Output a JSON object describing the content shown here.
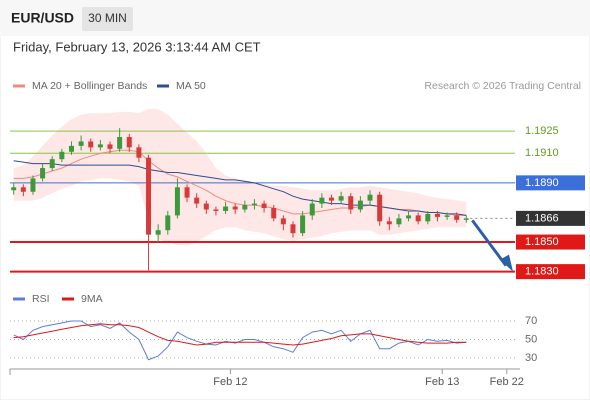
{
  "header": {
    "symbol": "EUR/USD",
    "timeframe": "30 MIN",
    "datetime": "Friday, February 13, 2026 3:13:44 AM CET"
  },
  "chart_data": [
    {
      "type": "candlestick",
      "credit": "Research © 2026 Trading Central",
      "ylim": [
        1.1823,
        1.1946
      ],
      "xlim": [
        -0.8,
        53.3
      ],
      "up_color": "#3c9a3c",
      "down_color": "#d83a3a",
      "open": [
        1.1885,
        1.1887,
        1.1884,
        1.1893,
        1.19,
        1.1906,
        1.1911,
        1.1915,
        1.1918,
        1.1914,
        1.1916,
        1.1913,
        1.1921,
        1.1914,
        1.1907,
        1.1855,
        1.1858,
        1.1868,
        1.1887,
        1.188,
        1.1876,
        1.1872,
        1.1871,
        1.1874,
        1.1872,
        1.1875,
        1.1876,
        1.1873,
        1.1866,
        1.1862,
        1.1856,
        1.1868,
        1.1876,
        1.188,
        1.1878,
        1.1881,
        1.1872,
        1.1878,
        1.1882,
        1.1864,
        1.1862,
        1.1866,
        1.1868,
        1.1864,
        1.1869,
        1.1867,
        1.1868,
        1.1865
      ],
      "high": [
        1.189,
        1.1889,
        1.1895,
        1.1903,
        1.1908,
        1.1913,
        1.1918,
        1.1922,
        1.192,
        1.1919,
        1.1918,
        1.1927,
        1.1923,
        1.1916,
        1.1909,
        1.1862,
        1.1871,
        1.1893,
        1.1889,
        1.1883,
        1.1878,
        1.1874,
        1.1877,
        1.1876,
        1.1878,
        1.1879,
        1.1878,
        1.1875,
        1.1868,
        1.1864,
        1.1871,
        1.1879,
        1.1883,
        1.1882,
        1.1884,
        1.1883,
        1.1881,
        1.1885,
        1.1884,
        1.1867,
        1.1869,
        1.1871,
        1.187,
        1.1871,
        1.1871,
        1.187,
        1.187,
        1.1868
      ],
      "low": [
        1.1882,
        1.1881,
        1.1882,
        1.1891,
        1.1898,
        1.1904,
        1.1909,
        1.1912,
        1.1911,
        1.1912,
        1.191,
        1.1911,
        1.1911,
        1.1904,
        1.1831,
        1.185,
        1.1855,
        1.1866,
        1.1877,
        1.1873,
        1.1869,
        1.1868,
        1.1869,
        1.1869,
        1.187,
        1.1872,
        1.187,
        1.1864,
        1.1858,
        1.1853,
        1.1854,
        1.1865,
        1.1873,
        1.1875,
        1.1876,
        1.1869,
        1.187,
        1.1875,
        1.1861,
        1.1858,
        1.186,
        1.1864,
        1.1862,
        1.1862,
        1.1864,
        1.1865,
        1.1863,
        1.1863
      ],
      "close": [
        1.1887,
        1.1884,
        1.1893,
        1.19,
        1.1906,
        1.1911,
        1.1915,
        1.1918,
        1.1914,
        1.1916,
        1.1913,
        1.1921,
        1.1914,
        1.1907,
        1.1855,
        1.1858,
        1.1868,
        1.1887,
        1.188,
        1.1876,
        1.1872,
        1.1871,
        1.1874,
        1.1872,
        1.1875,
        1.1876,
        1.1873,
        1.1866,
        1.1862,
        1.1856,
        1.1868,
        1.1876,
        1.188,
        1.1878,
        1.1881,
        1.1872,
        1.1878,
        1.1882,
        1.1864,
        1.1862,
        1.1866,
        1.1868,
        1.1864,
        1.1869,
        1.1867,
        1.1868,
        1.1865,
        1.1866
      ],
      "series": [
        {
          "name": "MA 20 + Bollinger Bands",
          "color": "#f08a80",
          "band_color": "#fde3e3",
          "values": [
            1.1893,
            1.1893,
            1.1894,
            1.1896,
            1.1898,
            1.19,
            1.1903,
            1.1906,
            1.1908,
            1.191,
            1.1911,
            1.1912,
            1.1912,
            1.1911,
            1.1905,
            1.19,
            1.1896,
            1.1894,
            1.1891,
            1.1888,
            1.1885,
            1.1881,
            1.1878,
            1.1876,
            1.1875,
            1.1875,
            1.1874,
            1.1873,
            1.1871,
            1.1869,
            1.1869,
            1.187,
            1.1871,
            1.1872,
            1.1873,
            1.1873,
            1.1874,
            1.1875,
            1.1874,
            1.1873,
            1.1872,
            1.1872,
            1.1871,
            1.187,
            1.187,
            1.1869,
            1.1868,
            1.1868
          ],
          "upper": [
            1.19,
            1.1902,
            1.1908,
            1.1915,
            1.1922,
            1.1928,
            1.1933,
            1.1936,
            1.1937,
            1.1937,
            1.1937,
            1.1938,
            1.1938,
            1.1937,
            1.194,
            1.194,
            1.1936,
            1.193,
            1.1924,
            1.1918,
            1.191,
            1.19,
            1.1895,
            1.1893,
            1.1892,
            1.189,
            1.1889,
            1.1888,
            1.1888,
            1.1887,
            1.1886,
            1.1885,
            1.1885,
            1.1885,
            1.1886,
            1.1887,
            1.1887,
            1.1888,
            1.1887,
            1.1886,
            1.1885,
            1.1884,
            1.1883,
            1.1881,
            1.188,
            1.1879,
            1.1878,
            1.1877
          ],
          "lower": [
            1.1878,
            1.1878,
            1.1878,
            1.188,
            1.1883,
            1.1886,
            1.1888,
            1.1891,
            1.1892,
            1.1893,
            1.1893,
            1.1892,
            1.1891,
            1.1888,
            1.1865,
            1.1852,
            1.185,
            1.1848,
            1.1848,
            1.185,
            1.1854,
            1.1858,
            1.186,
            1.186,
            1.1858,
            1.1857,
            1.1856,
            1.1854,
            1.1852,
            1.1851,
            1.1852,
            1.1853,
            1.1854,
            1.1856,
            1.1857,
            1.1858,
            1.1858,
            1.1858,
            1.1855,
            1.1855,
            1.1856,
            1.1857,
            1.1858,
            1.1859,
            1.186,
            1.186,
            1.186,
            1.186
          ]
        },
        {
          "name": "MA 50",
          "color": "#2b4f8f",
          "values": [
            1.1905,
            1.1904,
            1.1903,
            1.1903,
            1.1903,
            1.1902,
            1.1902,
            1.1902,
            1.1902,
            1.1902,
            1.1902,
            1.1902,
            1.1902,
            1.1901,
            1.1899,
            1.1898,
            1.1897,
            1.1897,
            1.1896,
            1.1895,
            1.1894,
            1.1893,
            1.1892,
            1.1892,
            1.1891,
            1.189,
            1.1888,
            1.1886,
            1.1884,
            1.1881,
            1.1879,
            1.1878,
            1.1877,
            1.1876,
            1.1876,
            1.1875,
            1.1875,
            1.1875,
            1.1874,
            1.1873,
            1.1872,
            1.1871,
            1.1871,
            1.187,
            1.187,
            1.1869,
            1.1869,
            1.1868
          ]
        }
      ],
      "levels": [
        {
          "value": 1.1925,
          "color": "#8bc34a",
          "style": "text"
        },
        {
          "value": {
            "value": 1.191,
            "label": "1.1910"
          },
          "color": "#8bc34a",
          "style": "text"
        },
        {
          "value": {
            "value": 1.189,
            "label": "1.1890"
          },
          "color": "#3b6fd9",
          "style": "box"
        },
        {
          "value": 1.1866,
          "color": "#333333",
          "style": "dotted"
        },
        {
          "value": {
            "value": 1.185,
            "label": "1.1850"
          },
          "color": "#e01818",
          "style": "box"
        },
        {
          "value": {
            "value": 1.183,
            "label": "1.1830"
          },
          "color": "#e01818",
          "style": "box"
        }
      ]
    },
    {
      "type": "line",
      "ylim": [
        19,
        82
      ],
      "yticks": [
        70,
        50,
        30
      ],
      "xlim": [
        -0.8,
        53.3
      ],
      "xticks": [
        {
          "value": 22.5,
          "label": "Feb 12"
        },
        {
          "value": 44.5,
          "label": "Feb 13"
        },
        {
          "value": 51.2,
          "label": "Feb 22"
        }
      ],
      "series": [
        {
          "name": "RSI",
          "color": "#5b7fd6",
          "values": [
            55,
            50,
            60,
            64,
            66,
            68,
            70,
            70,
            64,
            66,
            62,
            68,
            58,
            50,
            28,
            32,
            42,
            58,
            52,
            48,
            45,
            44,
            48,
            46,
            50,
            50,
            47,
            42,
            40,
            36,
            52,
            58,
            60,
            56,
            60,
            48,
            56,
            60,
            40,
            40,
            46,
            48,
            44,
            50,
            48,
            49,
            46,
            47
          ]
        },
        {
          "name": "9MA",
          "color": "#e01818",
          "values": [
            52,
            53,
            55,
            57,
            59,
            61,
            63,
            65,
            66,
            67,
            66,
            66,
            65,
            63,
            58,
            53,
            49,
            48,
            46,
            44,
            45,
            47,
            47,
            47,
            47,
            47,
            47,
            46,
            45,
            44,
            45,
            47,
            49,
            51,
            54,
            55,
            56,
            56,
            54,
            52,
            50,
            48,
            47,
            46,
            46,
            46,
            47,
            47
          ]
        }
      ]
    }
  ]
}
